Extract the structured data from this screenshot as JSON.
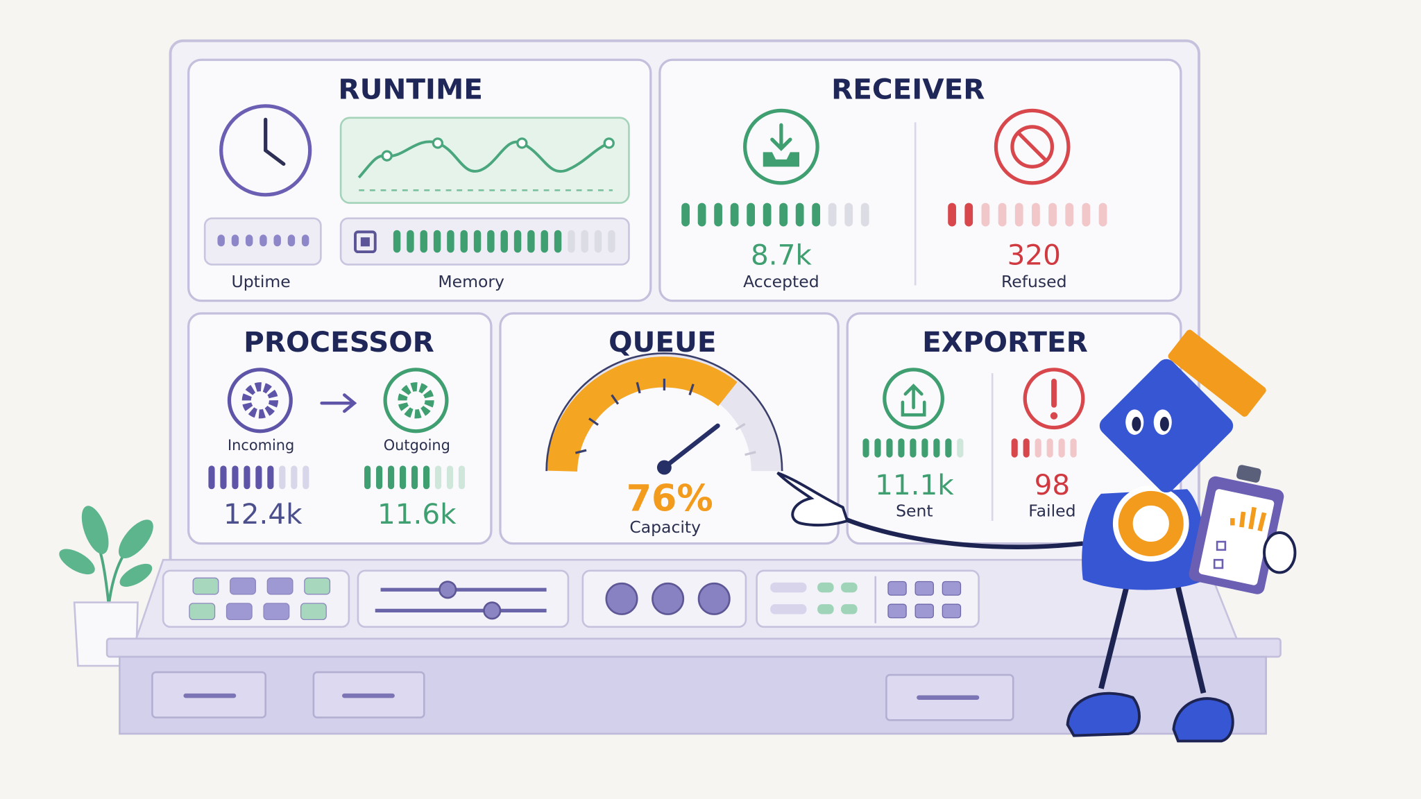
{
  "runtime": {
    "title": "RUNTIME",
    "uptime_label": "Uptime",
    "memory_label": "Memory"
  },
  "receiver": {
    "title": "RECEIVER",
    "accepted": {
      "value": "8.7k",
      "label": "Accepted"
    },
    "refused": {
      "value": "320",
      "label": "Refused"
    }
  },
  "processor": {
    "title": "PROCESSOR",
    "incoming": {
      "label": "Incoming",
      "value": "12.4k"
    },
    "outgoing": {
      "label": "Outgoing",
      "value": "11.6k"
    }
  },
  "queue": {
    "title": "QUEUE",
    "value": "76%",
    "label": "Capacity"
  },
  "exporter": {
    "title": "EXPORTER",
    "sent": {
      "value": "11.1k",
      "label": "Sent"
    },
    "failed": {
      "value": "98",
      "label": "Failed"
    }
  }
}
